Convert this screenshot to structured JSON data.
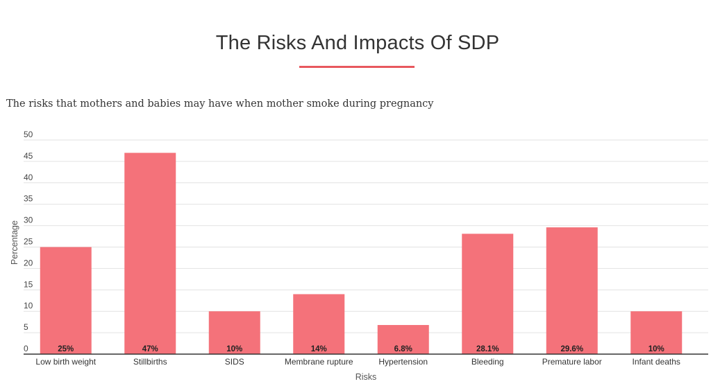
{
  "page": {
    "title": "The Risks And Impacts Of SDP",
    "subtitle": "The risks that mothers and babies may have when mother smoke during pregnancy",
    "accent_color": "#e8585e"
  },
  "chart_data": {
    "type": "bar",
    "categories": [
      "Low birth weight",
      "Stillbirths",
      "SIDS",
      "Membrane rupture",
      "Hypertension",
      "Bleeding",
      "Premature labor",
      "Infant deaths"
    ],
    "values": [
      25,
      47,
      10,
      14,
      6.8,
      28.1,
      29.6,
      10
    ],
    "data_labels": [
      "25%",
      "47%",
      "10%",
      "14%",
      "6.8%",
      "28.1%",
      "29.6%",
      "10%"
    ],
    "xlabel": "Risks",
    "ylabel": "Percentage",
    "ylim": [
      0,
      50
    ],
    "yticks": [
      "0",
      "5",
      "10",
      "15",
      "20",
      "25",
      "30",
      "35",
      "40",
      "45",
      "50"
    ],
    "grid": true,
    "bar_color": "#f4727a"
  }
}
